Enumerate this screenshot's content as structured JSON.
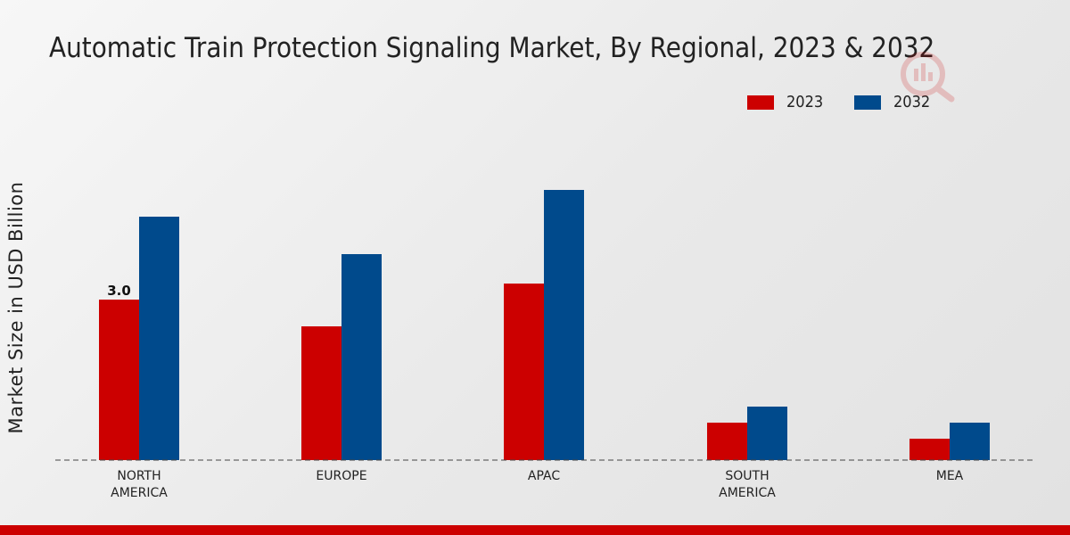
{
  "chart_data": {
    "type": "bar",
    "title": "Automatic Train Protection Signaling Market, By Regional, 2023 & 2032",
    "xlabel": "",
    "ylabel": "Market Size in USD Billion",
    "categories": [
      [
        "NORTH",
        "AMERICA"
      ],
      [
        "EUROPE"
      ],
      [
        "APAC"
      ],
      [
        "SOUTH",
        "AMERICA"
      ],
      [
        "MEA"
      ]
    ],
    "series": [
      {
        "name": "2023",
        "color": "#cc0000",
        "values": [
          3.0,
          2.5,
          3.3,
          0.7,
          0.4
        ]
      },
      {
        "name": "2032",
        "color": "#004a8c",
        "values": [
          4.55,
          3.85,
          5.05,
          1.0,
          0.7
        ]
      }
    ],
    "data_labels": [
      {
        "series": 0,
        "index": 0,
        "text": "3.0"
      }
    ],
    "ylim": [
      0,
      6.5
    ],
    "grid": false,
    "legend_position": "top-right"
  }
}
